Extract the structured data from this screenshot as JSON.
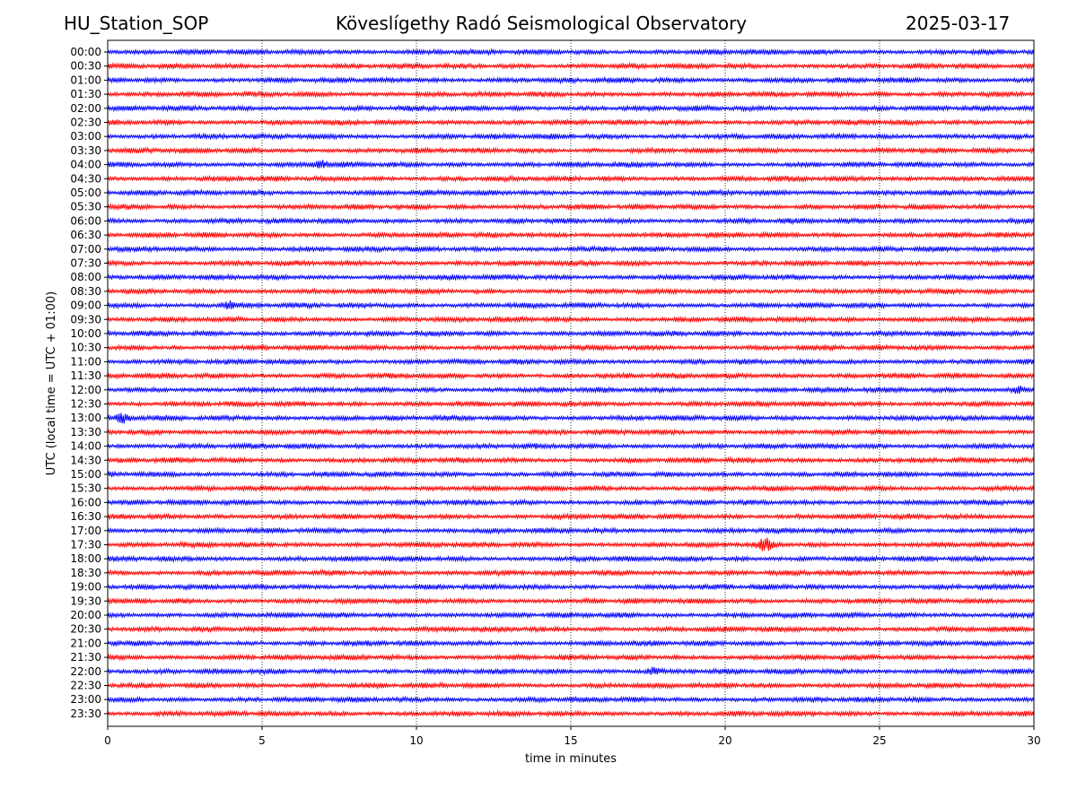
{
  "header": {
    "station": "HU_Station_SOP",
    "observatory": "Köveslígethy Radó Seismological Observatory",
    "date": "2025-03-17"
  },
  "chart_data": {
    "type": "line",
    "title": "Köveslígethy Radó Seismological Observatory",
    "xlabel": "time in minutes",
    "ylabel": "UTC (local time = UTC + 01:00)",
    "xlim": [
      0,
      30
    ],
    "xticks": [
      "0",
      "5",
      "10",
      "15",
      "20",
      "25",
      "30"
    ],
    "rows": [
      "00:00",
      "00:30",
      "01:00",
      "01:30",
      "02:00",
      "02:30",
      "03:00",
      "03:30",
      "04:00",
      "04:30",
      "05:00",
      "05:30",
      "06:00",
      "06:30",
      "07:00",
      "07:30",
      "08:00",
      "08:30",
      "09:00",
      "09:30",
      "10:00",
      "10:30",
      "11:00",
      "11:30",
      "12:00",
      "12:30",
      "13:00",
      "13:30",
      "14:00",
      "14:30",
      "15:00",
      "15:30",
      "16:00",
      "16:30",
      "17:00",
      "17:30",
      "18:00",
      "18:30",
      "19:00",
      "19:30",
      "20:00",
      "20:30",
      "21:00",
      "21:30",
      "22:00",
      "22:30",
      "23:00",
      "23:30"
    ],
    "trace_colors": [
      "#0000ff",
      "#ff0000"
    ],
    "grid": "vertical dotted at x ticks",
    "events": [
      {
        "row": "17:30",
        "minute": 21.3,
        "relative_amplitude": 2.2
      },
      {
        "row": "13:00",
        "minute": 0.5,
        "relative_amplitude": 1.6
      },
      {
        "row": "04:00",
        "minute": 6.9,
        "relative_amplitude": 1.6
      },
      {
        "row": "22:00",
        "minute": 17.7,
        "relative_amplitude": 1.5
      },
      {
        "row": "09:00",
        "minute": 3.9,
        "relative_amplitude": 1.5
      },
      {
        "row": "12:00",
        "minute": 29.5,
        "relative_amplitude": 1.4
      }
    ]
  }
}
